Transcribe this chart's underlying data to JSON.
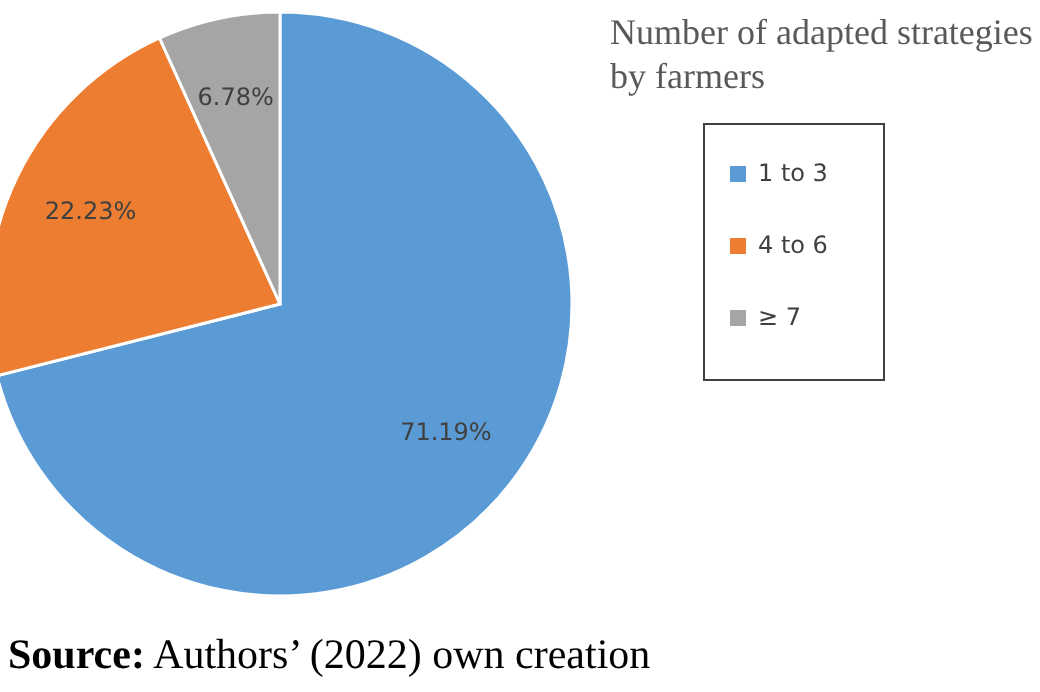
{
  "chart_data": {
    "type": "pie",
    "legend_title": "Number of adapted strategies by farmers",
    "categories": [
      "1 to 3",
      "4 to 6",
      "≥ 7"
    ],
    "values": [
      71.19,
      22.23,
      6.78
    ],
    "value_labels": [
      "71.19%",
      "22.23%",
      "6.78%"
    ],
    "colors": [
      "#5b9bd5",
      "#ed7d31",
      "#a5a5a5"
    ],
    "legend": "right",
    "annotations": [
      "Source: Authors’ (2022) own creation"
    ]
  }
}
